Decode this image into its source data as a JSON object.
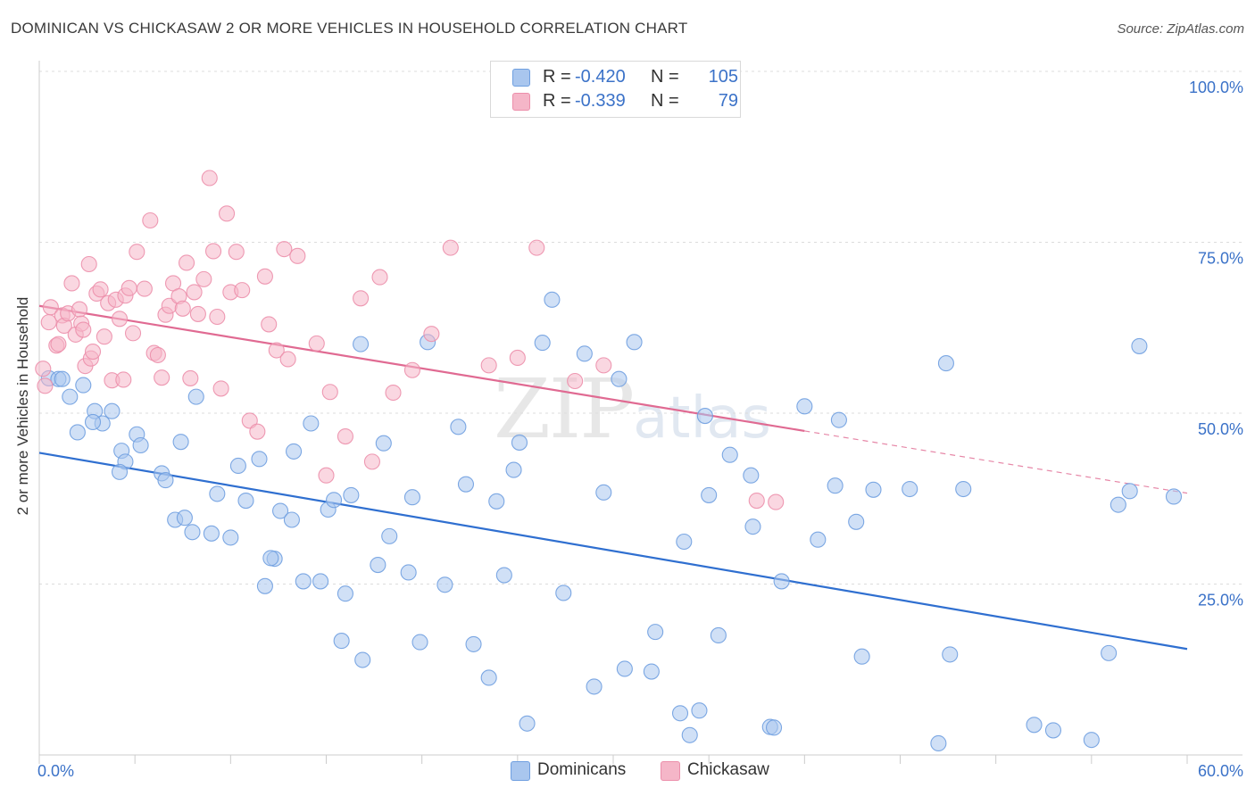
{
  "title": "DOMINICAN VS CHICKASAW 2 OR MORE VEHICLES IN HOUSEHOLD CORRELATION CHART",
  "source": "Source: ZipAtlas.com",
  "legend": {
    "rows": [
      {
        "r_label": "R =",
        "r_value": "-0.420",
        "n_label": "N =",
        "n_value": "105",
        "color": "#a9c6ee"
      },
      {
        "r_label": "R =",
        "r_value": "-0.339",
        "n_label": "N =",
        "n_value": "79",
        "color": "#f5b6c8"
      }
    ]
  },
  "bottom_legend": [
    {
      "label": "Dominicans",
      "color": "#a9c6ee"
    },
    {
      "label": "Chickasaw",
      "color": "#f5b6c8"
    }
  ],
  "watermark": {
    "zip": "ZIP",
    "atlas": "atlas"
  },
  "chart_data": {
    "type": "scatter",
    "ylabel": "2 or more Vehicles in Household",
    "xlim": [
      0,
      60
    ],
    "ylim": [
      0,
      100
    ],
    "x_tick_labels": [
      "0.0%",
      "60.0%"
    ],
    "y_ticks": [
      25,
      50,
      75,
      100
    ],
    "y_tick_labels": [
      "25.0%",
      "50.0%",
      "75.0%",
      "100.0%"
    ],
    "grid": true,
    "series": [
      {
        "name": "Dominicans",
        "color": "#6f9fe0",
        "fill": "#a9c6ee",
        "line_color": "#2f6fd0",
        "trend": {
          "x0": 0,
          "y0": 44.2,
          "x1": 60,
          "y1": 15.5
        },
        "points": [
          [
            0.5,
            55.1
          ],
          [
            1.0,
            55.0
          ],
          [
            1.2,
            55.0
          ],
          [
            2.3,
            54.1
          ],
          [
            1.6,
            52.4
          ],
          [
            2.0,
            47.2
          ],
          [
            2.9,
            50.3
          ],
          [
            3.3,
            48.5
          ],
          [
            3.8,
            50.3
          ],
          [
            2.8,
            48.7
          ],
          [
            4.3,
            44.5
          ],
          [
            5.1,
            46.9
          ],
          [
            5.3,
            45.3
          ],
          [
            4.5,
            42.9
          ],
          [
            4.2,
            41.4
          ],
          [
            6.4,
            41.2
          ],
          [
            6.6,
            40.2
          ],
          [
            7.4,
            45.8
          ],
          [
            8.2,
            52.4
          ],
          [
            7.1,
            34.4
          ],
          [
            7.6,
            34.7
          ],
          [
            8.0,
            32.6
          ],
          [
            9.0,
            32.4
          ],
          [
            9.3,
            38.2
          ],
          [
            10.0,
            31.8
          ],
          [
            10.4,
            42.3
          ],
          [
            10.8,
            37.2
          ],
          [
            11.5,
            43.3
          ],
          [
            12.3,
            28.7
          ],
          [
            11.8,
            24.7
          ],
          [
            12.1,
            28.8
          ],
          [
            12.6,
            35.7
          ],
          [
            13.2,
            34.4
          ],
          [
            13.3,
            44.4
          ],
          [
            13.8,
            25.4
          ],
          [
            14.2,
            48.5
          ],
          [
            14.7,
            25.4
          ],
          [
            15.1,
            35.9
          ],
          [
            15.4,
            37.3
          ],
          [
            15.8,
            16.7
          ],
          [
            16.0,
            23.6
          ],
          [
            16.3,
            38.0
          ],
          [
            16.8,
            60.1
          ],
          [
            16.9,
            13.9
          ],
          [
            18.0,
            45.6
          ],
          [
            17.7,
            27.8
          ],
          [
            18.3,
            32.0
          ],
          [
            19.3,
            26.7
          ],
          [
            19.5,
            37.7
          ],
          [
            19.9,
            16.5
          ],
          [
            20.3,
            60.4
          ],
          [
            21.2,
            24.9
          ],
          [
            21.9,
            48.0
          ],
          [
            22.3,
            39.6
          ],
          [
            22.7,
            16.2
          ],
          [
            23.5,
            11.3
          ],
          [
            23.9,
            37.1
          ],
          [
            24.3,
            26.3
          ],
          [
            24.8,
            41.7
          ],
          [
            25.1,
            45.7
          ],
          [
            25.5,
            4.6
          ],
          [
            26.3,
            60.3
          ],
          [
            26.8,
            66.6
          ],
          [
            27.4,
            23.7
          ],
          [
            28.5,
            58.7
          ],
          [
            29.0,
            10.0
          ],
          [
            29.5,
            38.4
          ],
          [
            30.3,
            55.0
          ],
          [
            30.6,
            12.6
          ],
          [
            31.1,
            60.4
          ],
          [
            32.0,
            12.2
          ],
          [
            32.2,
            18.0
          ],
          [
            33.5,
            6.1
          ],
          [
            33.7,
            31.2
          ],
          [
            34.0,
            2.9
          ],
          [
            34.5,
            6.5
          ],
          [
            34.8,
            49.6
          ],
          [
            35.0,
            38.0
          ],
          [
            35.5,
            17.5
          ],
          [
            36.1,
            43.9
          ],
          [
            37.2,
            40.9
          ],
          [
            37.3,
            33.4
          ],
          [
            38.2,
            4.1
          ],
          [
            38.4,
            4.0
          ],
          [
            38.8,
            25.4
          ],
          [
            40.0,
            51.0
          ],
          [
            40.7,
            31.5
          ],
          [
            41.6,
            39.4
          ],
          [
            41.8,
            49.0
          ],
          [
            42.7,
            34.1
          ],
          [
            43.0,
            14.4
          ],
          [
            43.6,
            38.8
          ],
          [
            45.5,
            38.9
          ],
          [
            47.0,
            1.7
          ],
          [
            47.4,
            57.3
          ],
          [
            47.6,
            14.7
          ],
          [
            48.3,
            38.9
          ],
          [
            52.0,
            4.4
          ],
          [
            53.0,
            3.6
          ],
          [
            55.0,
            2.2
          ],
          [
            55.9,
            14.9
          ],
          [
            56.4,
            36.6
          ],
          [
            57.0,
            38.6
          ],
          [
            57.5,
            59.8
          ],
          [
            59.3,
            37.8
          ]
        ]
      },
      {
        "name": "Chickasaw",
        "color": "#ec8fab",
        "fill": "#f5b6c8",
        "line_color": "#e06a92",
        "trend": {
          "x0": 0,
          "y0": 65.7,
          "x1": 40,
          "y1": 47.4
        },
        "trend_dashed": {
          "x0": 40,
          "y0": 47.4,
          "x1": 60,
          "y1": 38.3
        },
        "points": [
          [
            0.2,
            56.5
          ],
          [
            0.3,
            54.0
          ],
          [
            0.5,
            63.3
          ],
          [
            0.6,
            65.5
          ],
          [
            0.9,
            59.9
          ],
          [
            1.0,
            60.1
          ],
          [
            1.2,
            64.3
          ],
          [
            1.3,
            62.8
          ],
          [
            1.5,
            64.6
          ],
          [
            1.7,
            69.0
          ],
          [
            1.9,
            61.5
          ],
          [
            2.1,
            65.2
          ],
          [
            2.2,
            63.1
          ],
          [
            2.3,
            62.2
          ],
          [
            2.4,
            56.9
          ],
          [
            2.6,
            71.8
          ],
          [
            2.7,
            58.0
          ],
          [
            2.8,
            59.0
          ],
          [
            3.0,
            67.5
          ],
          [
            3.2,
            68.1
          ],
          [
            3.4,
            61.2
          ],
          [
            3.6,
            66.1
          ],
          [
            3.8,
            54.8
          ],
          [
            4.0,
            66.6
          ],
          [
            4.2,
            63.8
          ],
          [
            4.4,
            54.9
          ],
          [
            4.5,
            67.2
          ],
          [
            4.7,
            68.3
          ],
          [
            4.9,
            61.7
          ],
          [
            5.1,
            73.6
          ],
          [
            5.5,
            68.2
          ],
          [
            5.8,
            78.2
          ],
          [
            6.0,
            58.8
          ],
          [
            6.2,
            58.5
          ],
          [
            6.4,
            55.2
          ],
          [
            6.6,
            64.4
          ],
          [
            6.8,
            65.7
          ],
          [
            7.0,
            69.0
          ],
          [
            7.3,
            67.1
          ],
          [
            7.5,
            65.3
          ],
          [
            7.7,
            72.0
          ],
          [
            7.9,
            55.1
          ],
          [
            8.1,
            67.7
          ],
          [
            8.3,
            64.5
          ],
          [
            8.6,
            69.6
          ],
          [
            8.9,
            84.4
          ],
          [
            9.1,
            73.7
          ],
          [
            9.3,
            64.1
          ],
          [
            9.5,
            53.6
          ],
          [
            9.8,
            79.2
          ],
          [
            10.0,
            67.7
          ],
          [
            10.3,
            73.6
          ],
          [
            10.6,
            68.0
          ],
          [
            11.0,
            48.9
          ],
          [
            11.4,
            47.3
          ],
          [
            11.8,
            70.0
          ],
          [
            12.0,
            63.0
          ],
          [
            12.4,
            59.2
          ],
          [
            12.8,
            74.0
          ],
          [
            13.0,
            57.9
          ],
          [
            13.5,
            73.0
          ],
          [
            14.5,
            60.2
          ],
          [
            15.0,
            40.9
          ],
          [
            15.2,
            53.1
          ],
          [
            16.0,
            46.6
          ],
          [
            16.8,
            66.8
          ],
          [
            17.4,
            42.9
          ],
          [
            17.8,
            69.9
          ],
          [
            18.5,
            53.0
          ],
          [
            19.5,
            56.3
          ],
          [
            20.5,
            61.6
          ],
          [
            21.5,
            74.2
          ],
          [
            23.5,
            57.0
          ],
          [
            25.0,
            58.1
          ],
          [
            26.0,
            74.2
          ],
          [
            28.0,
            54.7
          ],
          [
            29.5,
            57.0
          ],
          [
            37.5,
            37.2
          ],
          [
            38.5,
            37.0
          ]
        ]
      }
    ]
  }
}
